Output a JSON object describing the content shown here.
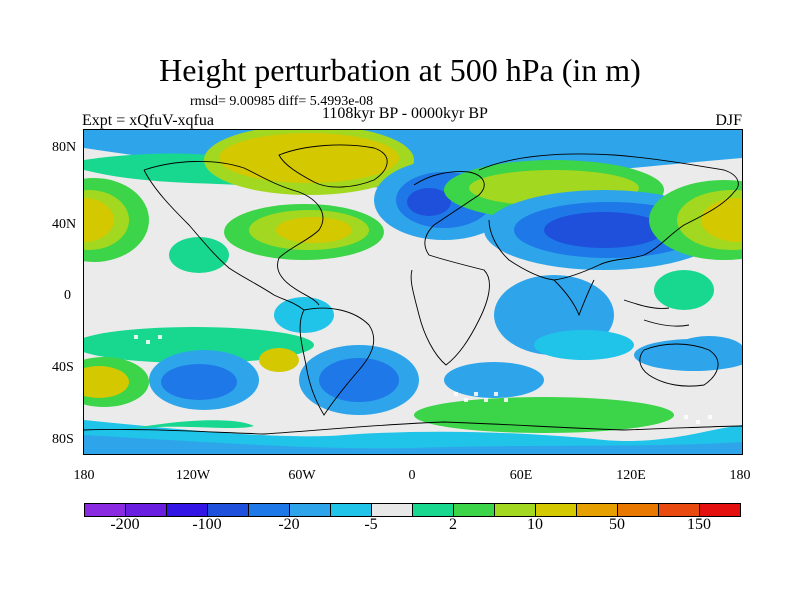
{
  "title": "Height perturbation at 500 hPa (in m)",
  "stats": "rmsd= 9.00985 diff= 5.4993e-08",
  "period": "1108kyr BP - 0000kyr BP",
  "experiment": "Expt = xQfuV-xqfua",
  "season": "DJF",
  "map": {
    "lat_labels": [
      "80N",
      "40N",
      "0",
      "40S",
      "80S"
    ],
    "lon_labels": [
      "180",
      "120W",
      "60W",
      "0",
      "60E",
      "120E",
      "180"
    ]
  },
  "colorbar": {
    "labels": [
      "-200",
      "-100",
      "-20",
      "-5",
      "2",
      "10",
      "50",
      "150"
    ],
    "colors": [
      "#8a2be2",
      "#6a1ee0",
      "#3316e6",
      "#1e50dc",
      "#1e78e8",
      "#2ea5ea",
      "#1fc4e8",
      "#e8e8e8",
      "#18d890",
      "#3cd448",
      "#a2d820",
      "#d4c800",
      "#e6a000",
      "#e87800",
      "#e84a10",
      "#e41010"
    ]
  }
}
